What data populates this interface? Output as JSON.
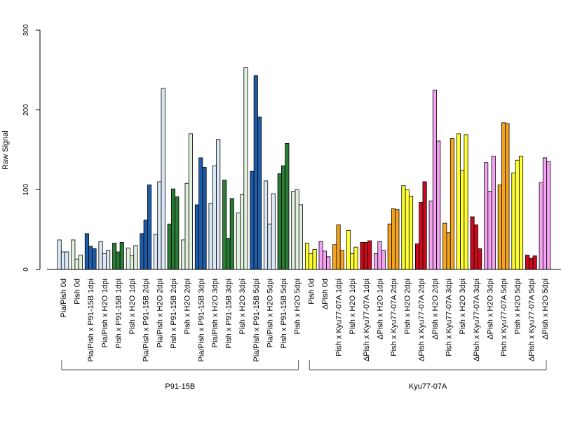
{
  "chart_data": {
    "type": "bar",
    "ylabel": "Raw Signal",
    "ylim": [
      0,
      300
    ],
    "yticks": [
      0,
      100,
      200,
      300
    ],
    "colors": {
      "pale_blue": "#dbe8f6",
      "pale_green": "#e3f2df",
      "dark_blue": "#1f5ca8",
      "dark_green": "#2b7a35",
      "yellow": "#ffff33",
      "violet": "#f4a3f2",
      "red": "#cc0a1e",
      "orange": "#f5a41c",
      "outline": "#000000"
    },
    "categories": [
      {
        "label": "Pia/Pish 0d",
        "color": "pale_blue",
        "values": [
          37,
          22,
          22
        ]
      },
      {
        "label": "Pish 0d",
        "color": "pale_green",
        "values": [
          37,
          13,
          18
        ]
      },
      {
        "label": "Pia/Pish x P91-15B 1dpi",
        "color": "dark_blue",
        "values": [
          45,
          29,
          26
        ]
      },
      {
        "label": "Pia/Pish x H2O 1dpi",
        "color": "pale_blue",
        "values": [
          35,
          20,
          24
        ]
      },
      {
        "label": "Pish x P91-15B 1dpi",
        "color": "dark_green",
        "values": [
          33,
          22,
          34
        ]
      },
      {
        "label": "Pish x H2O 1dpi",
        "color": "pale_green",
        "values": [
          27,
          17,
          30
        ]
      },
      {
        "label": "Pia/Pish x P91-15B 2dpi",
        "color": "dark_blue",
        "values": [
          45,
          62,
          106
        ]
      },
      {
        "label": "Pia/Pish x H2O 2dpi",
        "color": "pale_blue",
        "values": [
          44,
          110,
          227
        ]
      },
      {
        "label": "Pish x P91-15B 2dpi",
        "color": "dark_green",
        "values": [
          57,
          101,
          91
        ]
      },
      {
        "label": "Pish x H2O 2dpi",
        "color": "pale_green",
        "values": [
          37,
          108,
          170
        ]
      },
      {
        "label": "Pia/Pish x P91-15B 3dpi",
        "color": "dark_blue",
        "values": [
          81,
          140,
          128
        ]
      },
      {
        "label": "Pia/Pish x H2O 3dpi",
        "color": "pale_blue",
        "values": [
          83,
          130,
          163
        ]
      },
      {
        "label": "Pish x P91-15B 3dpi",
        "color": "dark_green",
        "values": [
          112,
          39,
          89
        ]
      },
      {
        "label": "Pish x H2O 3dpi",
        "color": "pale_green",
        "values": [
          71,
          94,
          253
        ]
      },
      {
        "label": "Pia/Pish x P91-15B 5dpi",
        "color": "dark_blue",
        "values": [
          123,
          243,
          191
        ]
      },
      {
        "label": "Pia/Pish x H2O 5dpi",
        "color": "pale_blue",
        "values": [
          111,
          57,
          95
        ]
      },
      {
        "label": "Pish x P91-15B 5dpi",
        "color": "dark_green",
        "values": [
          120,
          130,
          158
        ]
      },
      {
        "label": "Pish x H2O 5dpi",
        "color": "pale_green",
        "values": [
          98,
          100,
          81
        ]
      },
      {
        "label": "Pish 0d",
        "color": "yellow",
        "values": [
          33,
          20,
          25
        ]
      },
      {
        "label": "ΔPish 0d",
        "color": "violet",
        "values": [
          35,
          23,
          16
        ]
      },
      {
        "label": "Pish x Kyu77-07A 1dpi",
        "color": "orange",
        "values": [
          31,
          56,
          24
        ]
      },
      {
        "label": "Pish x H2O 1dpi",
        "color": "yellow",
        "values": [
          49,
          20,
          28
        ]
      },
      {
        "label": "ΔPish x Kyu77-07A 1dpi",
        "color": "red",
        "values": [
          34,
          34,
          36
        ]
      },
      {
        "label": "ΔPish x H2O 1dpi",
        "color": "violet",
        "values": [
          20,
          35,
          24
        ]
      },
      {
        "label": "Pish x Kyu77-07A 2dpi",
        "color": "orange",
        "values": [
          57,
          76,
          75
        ]
      },
      {
        "label": "Pish x H2O 2dpi",
        "color": "yellow",
        "values": [
          105,
          100,
          92
        ]
      },
      {
        "label": "ΔPish x Kyu77-07A 2dpi",
        "color": "red",
        "values": [
          32,
          84,
          110
        ]
      },
      {
        "label": "ΔPish x H2O 2dpi",
        "color": "violet",
        "values": [
          86,
          225,
          161
        ]
      },
      {
        "label": "Pish x Kyu77-07A 3dpi",
        "color": "orange",
        "values": [
          58,
          46,
          164
        ]
      },
      {
        "label": "Pish x H2O 3dpi",
        "color": "yellow",
        "values": [
          170,
          124,
          169
        ]
      },
      {
        "label": "ΔPish x Kyu77-07A 3dpi",
        "color": "red",
        "values": [
          66,
          56,
          26
        ]
      },
      {
        "label": "ΔPish x H2O 3dpi",
        "color": "violet",
        "values": [
          134,
          98,
          142
        ]
      },
      {
        "label": "Pish x Kyu77-07A 5dpi",
        "color": "orange",
        "values": [
          106,
          184,
          183
        ]
      },
      {
        "label": "Pish x H2O 5dpi",
        "color": "yellow",
        "values": [
          121,
          137,
          142
        ]
      },
      {
        "label": "ΔPish x Kyu77-07A 5dpi",
        "color": "red",
        "values": [
          18,
          14,
          17
        ]
      },
      {
        "label": "ΔPish x H2O 5dpi",
        "color": "violet",
        "values": [
          109,
          140,
          135
        ]
      }
    ],
    "groups": [
      {
        "label": "P91-15B",
        "from": 0,
        "to": 17
      },
      {
        "label": "Kyu77-07A",
        "from": 18,
        "to": 35
      }
    ]
  }
}
